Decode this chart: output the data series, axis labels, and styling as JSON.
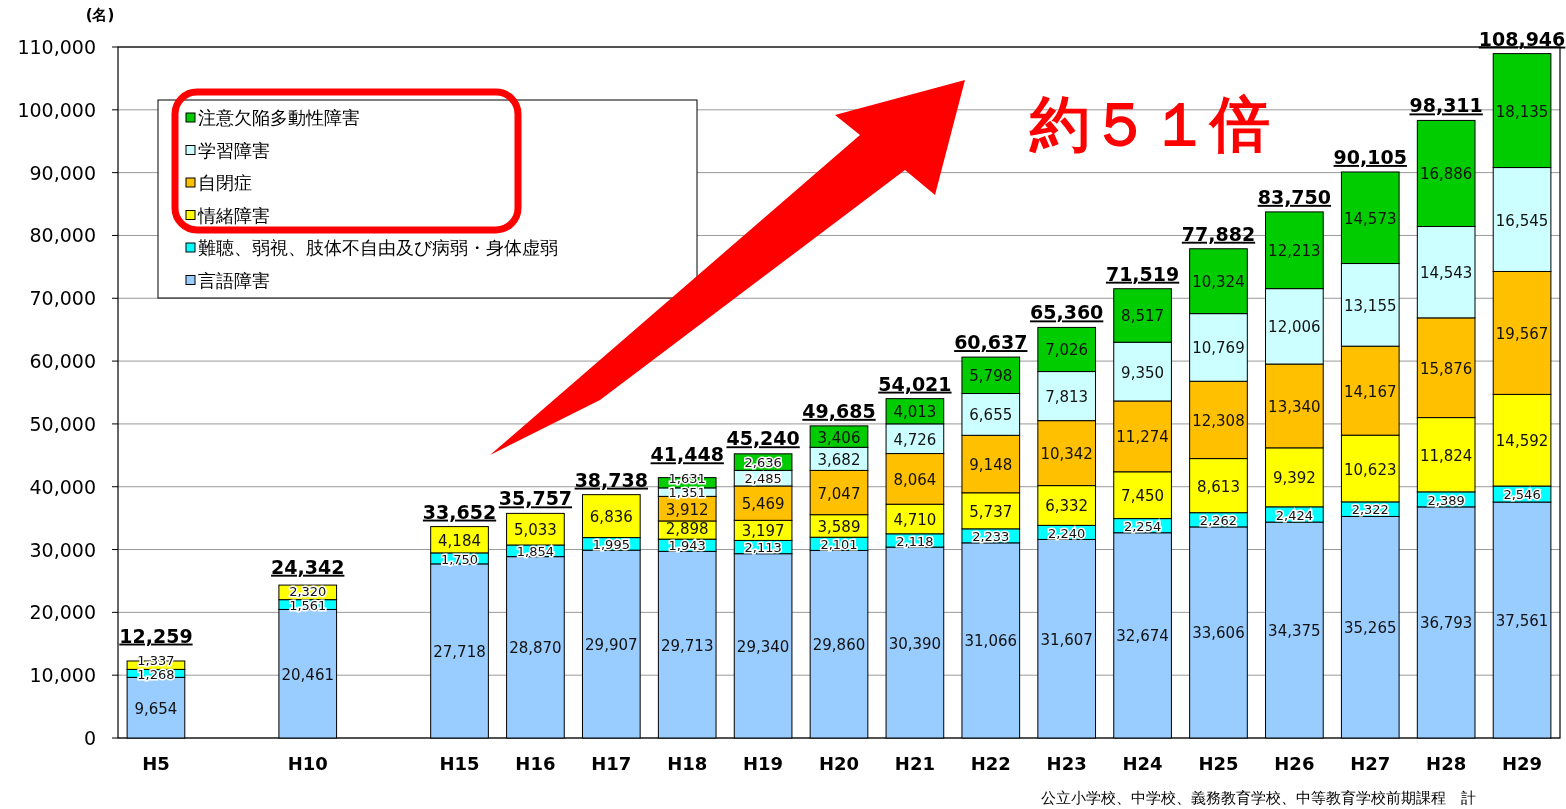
{
  "chart_data": {
    "type": "bar",
    "stacked": true,
    "ylabel": "(名)",
    "categories": [
      "H5",
      null,
      "H10",
      null,
      "H15",
      "H16",
      "H17",
      "H18",
      "H19",
      "H20",
      "H21",
      "H22",
      "H23",
      "H24",
      "H25",
      "H26",
      "H27",
      "H28",
      "H29"
    ],
    "series": [
      {
        "name": "言語障害",
        "color": "#99ccff",
        "values": [
          9654,
          null,
          20461,
          null,
          27718,
          28870,
          29907,
          29713,
          29340,
          29860,
          30390,
          31066,
          31607,
          32674,
          33606,
          34375,
          35265,
          36793,
          37561
        ],
        "value_labels": [
          "9,654",
          null,
          "20,461",
          null,
          "27,718",
          "28,870",
          "29,907",
          "29,713",
          "29,340",
          "29,860",
          "30,390",
          "31,066",
          "31,607",
          "32,674",
          "33,606",
          "34,375",
          "35,265",
          "36,793",
          "37,561"
        ]
      },
      {
        "name": "難聴、弱視、肢体不自由及び病弱・身体虚弱",
        "color": "#00ffff",
        "values": [
          1268,
          null,
          1561,
          null,
          1750,
          1854,
          1995,
          1943,
          2113,
          2101,
          2118,
          2233,
          2240,
          2254,
          2262,
          2424,
          2322,
          2389,
          2546
        ],
        "value_labels": [
          "1,268",
          null,
          "1,561",
          null,
          "1,750",
          "1,854",
          "1,995",
          "1,943",
          "2,113",
          "2,101",
          "2,118",
          "2,233",
          "2,240",
          "2,254",
          "2,262",
          "2,424",
          "2,322",
          "2,389",
          "2,546"
        ]
      },
      {
        "name": "情緒障害",
        "color": "#ffff00",
        "values": [
          1337,
          null,
          2320,
          null,
          4184,
          5033,
          6836,
          2898,
          3197,
          3589,
          4710,
          5737,
          6332,
          7450,
          8613,
          9392,
          10623,
          11824,
          14592
        ],
        "value_labels": [
          "1,337",
          null,
          "2,320",
          null,
          "4,184",
          "5,033",
          "6,836",
          "2,898",
          "3,197",
          "3,589",
          "4,710",
          "5,737",
          "6,332",
          "7,450",
          "8,613",
          "9,392",
          "10,623",
          "11,824",
          "14,592"
        ]
      },
      {
        "name": "自閉症",
        "color": "#ffc000",
        "values": [
          null,
          null,
          null,
          null,
          null,
          null,
          null,
          3912,
          5469,
          7047,
          8064,
          9148,
          10342,
          11274,
          12308,
          13340,
          14167,
          15876,
          19567
        ],
        "value_labels": [
          null,
          null,
          null,
          null,
          null,
          null,
          null,
          "3,912",
          "5,469",
          "7,047",
          "8,064",
          "9,148",
          "10,342",
          "11,274",
          "12,308",
          "13,340",
          "14,167",
          "15,876",
          "19,567"
        ]
      },
      {
        "name": "学習障害",
        "color": "#ccffff",
        "values": [
          null,
          null,
          null,
          null,
          null,
          null,
          null,
          1351,
          2485,
          3682,
          4726,
          6655,
          7813,
          9350,
          10769,
          12006,
          13155,
          14543,
          16545
        ],
        "value_labels": [
          null,
          null,
          null,
          null,
          null,
          null,
          null,
          "1,351",
          "2,485",
          "3,682",
          "4,726",
          "6,655",
          "7,813",
          "9,350",
          "10,769",
          "12,006",
          "13,155",
          "14,543",
          "16,545"
        ]
      },
      {
        "name": "注意欠陥多動性障害",
        "color": "#00cc00",
        "values": [
          null,
          null,
          null,
          null,
          null,
          null,
          null,
          1631,
          2636,
          3406,
          4013,
          5798,
          7026,
          8517,
          10324,
          12213,
          14573,
          16886,
          18135
        ],
        "value_labels": [
          null,
          null,
          null,
          null,
          null,
          null,
          null,
          "1,631",
          "2,636",
          "3,406",
          "4,013",
          "5,798",
          "7,026",
          "8,517",
          "10,324",
          "12,213",
          "14,573",
          "16,886",
          "18,135"
        ]
      }
    ],
    "totals": [
      "12,259",
      null,
      "24,342",
      null,
      "33,652",
      "35,757",
      "38,738",
      "41,448",
      "45,240",
      "49,685",
      "54,021",
      "60,637",
      "65,360",
      "71,519",
      "77,882",
      "83,750",
      "90,105",
      "98,311",
      "108,946"
    ],
    "ylim": [
      0,
      110000
    ],
    "yticks": [
      0,
      {
        "value": 10000,
        "label": "10,000"
      },
      {
        "value": 20000,
        "label": "20,000"
      },
      {
        "value": 30000,
        "label": "30,000"
      },
      {
        "value": 40000,
        "label": "40,000"
      },
      {
        "value": 50000,
        "label": "50,000"
      },
      {
        "value": 60000,
        "label": "60,000"
      },
      {
        "value": 70000,
        "label": "70,000"
      },
      {
        "value": 80000,
        "label": "80,000"
      },
      {
        "value": 90000,
        "label": "90,000"
      },
      {
        "value": 100000,
        "label": "100,000"
      },
      {
        "value": 110000,
        "label": "110,000"
      }
    ],
    "grid": "y",
    "legend": "top left",
    "annotations": [
      "約５１倍",
      "公立小学校、中学校、義務教育学校、中等教育学校前期課程　計"
    ]
  }
}
